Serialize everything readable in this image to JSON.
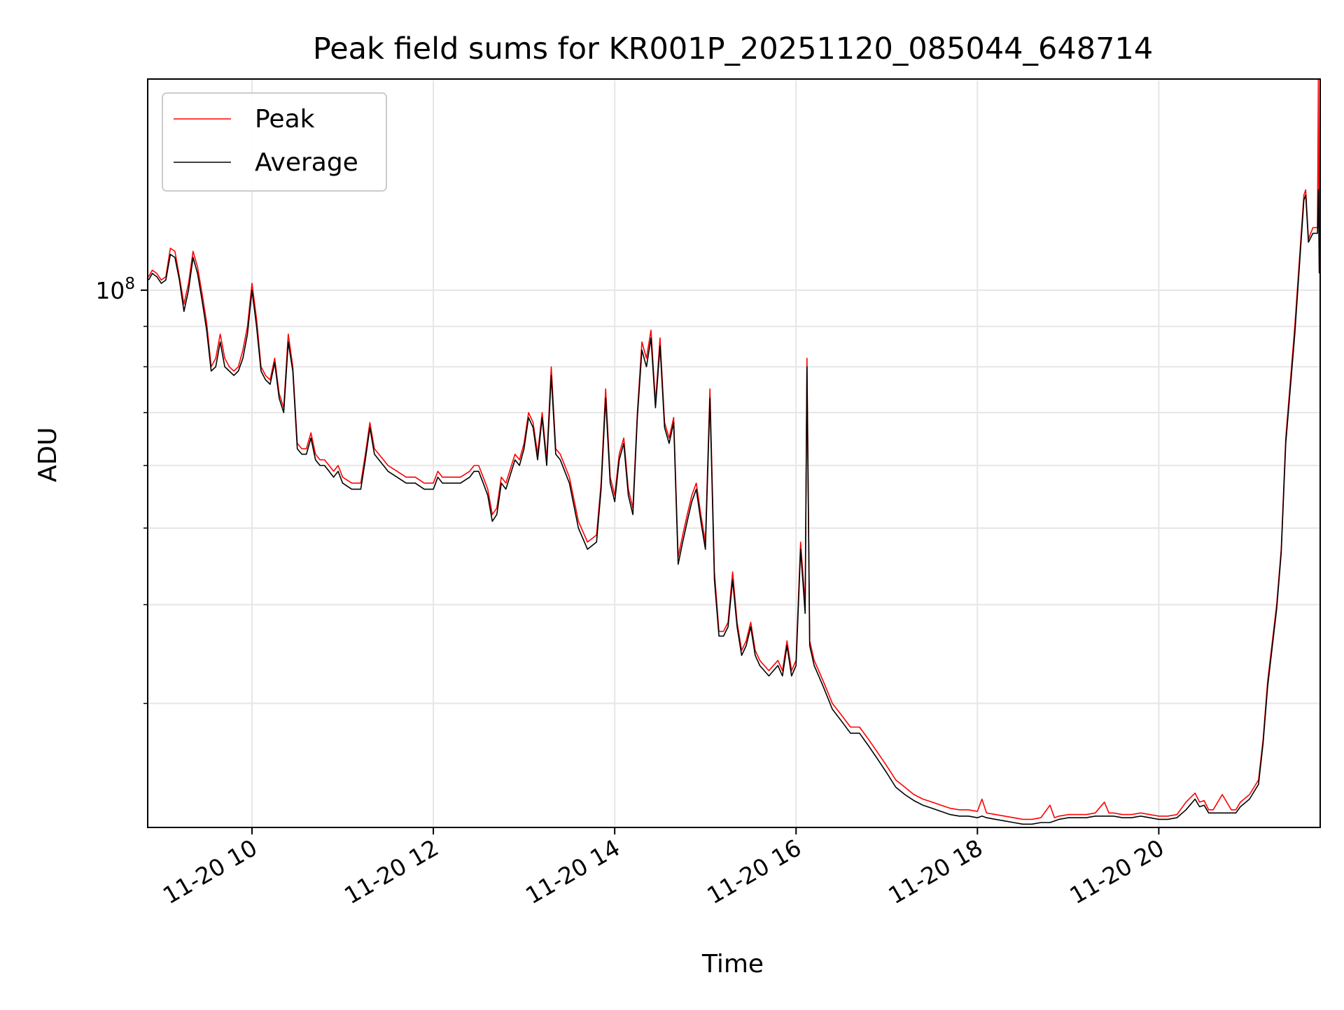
{
  "chart_data": {
    "type": "line",
    "title": "Peak field sums for KR001P_20251120_085044_648714",
    "xlabel": "Time",
    "ylabel": "ADU",
    "y_scale": "log",
    "x_unit": "hours",
    "xlim": [
      8.85,
      21.78
    ],
    "ylim": [
      20900000,
      185000000
    ],
    "grid": true,
    "legend_position": "top-left",
    "x_ticks": [
      {
        "value": 10,
        "label": "11-20 10"
      },
      {
        "value": 12,
        "label": "11-20 12"
      },
      {
        "value": 14,
        "label": "11-20 14"
      },
      {
        "value": 16,
        "label": "11-20 16"
      },
      {
        "value": 18,
        "label": "11-20 18"
      },
      {
        "value": 20,
        "label": "11-20 20"
      }
    ],
    "y_major_tick": {
      "value": 100000000,
      "base": "10",
      "exponent": "8"
    },
    "y_minor_ticks": [
      30000000,
      40000000,
      50000000,
      60000000,
      70000000,
      80000000,
      90000000,
      200000000
    ],
    "series": [
      {
        "name": "Peak",
        "color": "#ff0000",
        "x": [
          8.86,
          8.9,
          8.95,
          9.0,
          9.05,
          9.1,
          9.15,
          9.2,
          9.25,
          9.3,
          9.35,
          9.4,
          9.45,
          9.5,
          9.55,
          9.6,
          9.65,
          9.7,
          9.75,
          9.8,
          9.85,
          9.9,
          9.95,
          10.0,
          10.05,
          10.1,
          10.15,
          10.2,
          10.25,
          10.3,
          10.35,
          10.4,
          10.45,
          10.5,
          10.55,
          10.6,
          10.65,
          10.7,
          10.75,
          10.8,
          10.85,
          10.9,
          10.95,
          11.0,
          11.1,
          11.2,
          11.25,
          11.3,
          11.35,
          11.4,
          11.45,
          11.5,
          11.6,
          11.7,
          11.8,
          11.9,
          12.0,
          12.05,
          12.1,
          12.2,
          12.3,
          12.4,
          12.45,
          12.5,
          12.55,
          12.6,
          12.65,
          12.7,
          12.75,
          12.8,
          12.9,
          12.95,
          13.0,
          13.05,
          13.1,
          13.15,
          13.2,
          13.25,
          13.3,
          13.35,
          13.4,
          13.5,
          13.6,
          13.7,
          13.8,
          13.85,
          13.9,
          13.95,
          14.0,
          14.05,
          14.1,
          14.15,
          14.2,
          14.25,
          14.3,
          14.35,
          14.4,
          14.45,
          14.5,
          14.55,
          14.6,
          14.65,
          14.7,
          14.75,
          14.8,
          14.85,
          14.9,
          14.95,
          15.0,
          15.05,
          15.1,
          15.15,
          15.2,
          15.25,
          15.3,
          15.35,
          15.4,
          15.45,
          15.5,
          15.55,
          15.6,
          15.7,
          15.8,
          15.85,
          15.9,
          15.95,
          16.0,
          16.05,
          16.1,
          16.12,
          16.15,
          16.2,
          16.25,
          16.3,
          16.4,
          16.5,
          16.6,
          16.7,
          16.8,
          16.9,
          17.0,
          17.1,
          17.2,
          17.3,
          17.4,
          17.5,
          17.6,
          17.7,
          17.8,
          17.9,
          18.0,
          18.05,
          18.1,
          18.2,
          18.3,
          18.4,
          18.5,
          18.6,
          18.7,
          18.8,
          18.85,
          18.9,
          19.0,
          19.1,
          19.2,
          19.3,
          19.4,
          19.45,
          19.5,
          19.6,
          19.7,
          19.8,
          19.9,
          20.0,
          20.1,
          20.2,
          20.3,
          20.4,
          20.45,
          20.5,
          20.55,
          20.6,
          20.7,
          20.8,
          20.85,
          20.9,
          21.0,
          21.1,
          21.15,
          21.2,
          21.3,
          21.35,
          21.4,
          21.5,
          21.6,
          21.62,
          21.65,
          21.7,
          21.75,
          21.76,
          21.77
        ],
        "y": [
          104000000,
          106000000,
          105000000,
          103000000,
          104000000,
          113000000,
          112000000,
          104000000,
          96000000,
          102000000,
          112000000,
          107000000,
          99000000,
          91000000,
          80000000,
          82000000,
          88000000,
          82000000,
          80000000,
          79000000,
          80000000,
          84000000,
          90000000,
          102000000,
          92000000,
          80000000,
          78000000,
          77000000,
          82000000,
          74000000,
          71000000,
          88000000,
          80000000,
          64000000,
          63000000,
          63000000,
          66000000,
          62000000,
          61000000,
          61000000,
          60000000,
          59000000,
          60000000,
          58000000,
          57000000,
          57000000,
          62000000,
          68000000,
          63000000,
          62000000,
          61000000,
          60000000,
          59000000,
          58000000,
          58000000,
          57000000,
          57000000,
          59000000,
          58000000,
          58000000,
          58000000,
          59000000,
          60000000,
          60000000,
          58000000,
          56000000,
          52000000,
          53000000,
          58000000,
          57000000,
          62000000,
          61000000,
          64000000,
          70000000,
          68000000,
          62000000,
          70000000,
          61000000,
          80000000,
          63000000,
          62000000,
          58000000,
          51000000,
          48000000,
          49000000,
          57000000,
          75000000,
          58000000,
          55000000,
          62000000,
          65000000,
          56000000,
          53000000,
          70000000,
          86000000,
          82000000,
          89000000,
          72000000,
          87000000,
          68000000,
          65000000,
          69000000,
          46000000,
          49000000,
          52000000,
          55000000,
          57000000,
          52000000,
          48000000,
          75000000,
          44000000,
          37000000,
          37000000,
          38000000,
          44000000,
          38000000,
          35000000,
          36000000,
          38000000,
          35000000,
          34000000,
          33000000,
          34000000,
          33000000,
          36000000,
          33000000,
          34000000,
          48000000,
          40000000,
          82000000,
          36000000,
          34000000,
          33000000,
          32000000,
          30000000,
          29000000,
          28000000,
          28000000,
          27000000,
          26000000,
          25000000,
          24000000,
          23500000,
          23000000,
          22700000,
          22500000,
          22300000,
          22100000,
          22000000,
          22000000,
          21900000,
          22700000,
          21800000,
          21700000,
          21600000,
          21500000,
          21400000,
          21400000,
          21500000,
          22300000,
          21500000,
          21600000,
          21700000,
          21700000,
          21700000,
          21800000,
          22500000,
          21800000,
          21800000,
          21700000,
          21700000,
          21800000,
          21700000,
          21600000,
          21600000,
          21700000,
          22500000,
          23100000,
          22500000,
          22600000,
          22000000,
          22000000,
          23000000,
          22000000,
          22000000,
          22500000,
          23000000,
          24000000,
          27000000,
          32000000,
          40000000,
          47000000,
          65000000,
          90000000,
          132000000,
          134000000,
          116000000,
          120000000,
          120000000,
          185000000,
          106000000
        ]
      },
      {
        "name": "Average",
        "color": "#000000",
        "x": [
          8.86,
          8.9,
          8.95,
          9.0,
          9.05,
          9.1,
          9.15,
          9.2,
          9.25,
          9.3,
          9.35,
          9.4,
          9.45,
          9.5,
          9.55,
          9.6,
          9.65,
          9.7,
          9.75,
          9.8,
          9.85,
          9.9,
          9.95,
          10.0,
          10.05,
          10.1,
          10.15,
          10.2,
          10.25,
          10.3,
          10.35,
          10.4,
          10.45,
          10.5,
          10.55,
          10.6,
          10.65,
          10.7,
          10.75,
          10.8,
          10.85,
          10.9,
          10.95,
          11.0,
          11.1,
          11.2,
          11.25,
          11.3,
          11.35,
          11.4,
          11.45,
          11.5,
          11.6,
          11.7,
          11.8,
          11.9,
          12.0,
          12.05,
          12.1,
          12.2,
          12.3,
          12.4,
          12.45,
          12.5,
          12.55,
          12.6,
          12.65,
          12.7,
          12.75,
          12.8,
          12.9,
          12.95,
          13.0,
          13.05,
          13.1,
          13.15,
          13.2,
          13.25,
          13.3,
          13.35,
          13.4,
          13.5,
          13.6,
          13.7,
          13.8,
          13.85,
          13.9,
          13.95,
          14.0,
          14.05,
          14.1,
          14.15,
          14.2,
          14.25,
          14.3,
          14.35,
          14.4,
          14.45,
          14.5,
          14.55,
          14.6,
          14.65,
          14.7,
          14.75,
          14.8,
          14.85,
          14.9,
          14.95,
          15.0,
          15.05,
          15.1,
          15.15,
          15.2,
          15.25,
          15.3,
          15.35,
          15.4,
          15.45,
          15.5,
          15.55,
          15.6,
          15.7,
          15.8,
          15.85,
          15.9,
          15.95,
          16.0,
          16.05,
          16.1,
          16.12,
          16.15,
          16.2,
          16.25,
          16.3,
          16.4,
          16.5,
          16.6,
          16.7,
          16.8,
          16.9,
          17.0,
          17.1,
          17.2,
          17.3,
          17.4,
          17.5,
          17.6,
          17.7,
          17.8,
          17.9,
          18.0,
          18.05,
          18.1,
          18.2,
          18.3,
          18.4,
          18.5,
          18.6,
          18.7,
          18.8,
          18.85,
          18.9,
          19.0,
          19.1,
          19.2,
          19.3,
          19.4,
          19.45,
          19.5,
          19.6,
          19.7,
          19.8,
          19.9,
          20.0,
          20.1,
          20.2,
          20.3,
          20.4,
          20.45,
          20.5,
          20.55,
          20.6,
          20.7,
          20.8,
          20.85,
          20.9,
          21.0,
          21.1,
          21.15,
          21.2,
          21.3,
          21.35,
          21.4,
          21.5,
          21.6,
          21.62,
          21.65,
          21.7,
          21.75,
          21.76,
          21.77
        ],
        "y": [
          103000000,
          105000000,
          104000000,
          102000000,
          103000000,
          111000000,
          110000000,
          103000000,
          94000000,
          100000000,
          110000000,
          105000000,
          97000000,
          89000000,
          79000000,
          80000000,
          86000000,
          80000000,
          79000000,
          78000000,
          79000000,
          82000000,
          88000000,
          100000000,
          90000000,
          79000000,
          77000000,
          76000000,
          81000000,
          73000000,
          70000000,
          86000000,
          79000000,
          63000000,
          62000000,
          62000000,
          65000000,
          61000000,
          60000000,
          60000000,
          59000000,
          58000000,
          59000000,
          57000000,
          56000000,
          56000000,
          61000000,
          67000000,
          62000000,
          61000000,
          60000000,
          59000000,
          58000000,
          57000000,
          57000000,
          56000000,
          56000000,
          58000000,
          57000000,
          57000000,
          57000000,
          58000000,
          59000000,
          59000000,
          57000000,
          55000000,
          51000000,
          52000000,
          57000000,
          56000000,
          61000000,
          60000000,
          63000000,
          69000000,
          67000000,
          61000000,
          69000000,
          60000000,
          78000000,
          62000000,
          61000000,
          57000000,
          50000000,
          47000000,
          48000000,
          56000000,
          73000000,
          57000000,
          54000000,
          61000000,
          64000000,
          55000000,
          52000000,
          69000000,
          84000000,
          80000000,
          87000000,
          71000000,
          85000000,
          67000000,
          64000000,
          68000000,
          45000000,
          48000000,
          51000000,
          54000000,
          56000000,
          51000000,
          47000000,
          73000000,
          43000000,
          36500000,
          36500000,
          37500000,
          43000000,
          37500000,
          34500000,
          35500000,
          37500000,
          34500000,
          33500000,
          32500000,
          33500000,
          32500000,
          35500000,
          32500000,
          33500000,
          47000000,
          39000000,
          80000000,
          35500000,
          33500000,
          32500000,
          31500000,
          29500000,
          28500000,
          27500000,
          27500000,
          26500000,
          25500000,
          24500000,
          23500000,
          23000000,
          22600000,
          22300000,
          22100000,
          21900000,
          21700000,
          21600000,
          21600000,
          21500000,
          21600000,
          21500000,
          21400000,
          21300000,
          21200000,
          21100000,
          21100000,
          21200000,
          21200000,
          21300000,
          21400000,
          21500000,
          21500000,
          21500000,
          21600000,
          21600000,
          21600000,
          21600000,
          21500000,
          21500000,
          21600000,
          21500000,
          21400000,
          21400000,
          21500000,
          22000000,
          22700000,
          22200000,
          22300000,
          21800000,
          21800000,
          21800000,
          21800000,
          21800000,
          22200000,
          22700000,
          23700000,
          26700000,
          31500000,
          39500000,
          46500000,
          64000000,
          88000000,
          130000000,
          132000000,
          115000000,
          118000000,
          118000000,
          134000000,
          105000000
        ]
      }
    ]
  }
}
